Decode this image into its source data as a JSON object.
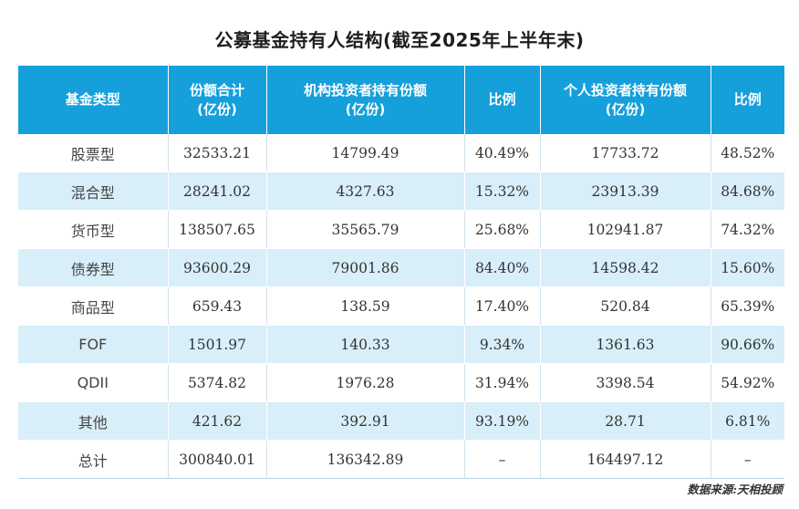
{
  "title": "公募基金持有人结构(截至2025年上半年末)",
  "table": {
    "headers": [
      {
        "line1": "基金类型",
        "line2": ""
      },
      {
        "line1": "份额合计",
        "line2": "(亿份)"
      },
      {
        "line1": "机构投资者持有份额",
        "line2": "(亿份)"
      },
      {
        "line1": "比例",
        "line2": ""
      },
      {
        "line1": "个人投资者持有份额",
        "line2": "(亿份)"
      },
      {
        "line1": "比例",
        "line2": ""
      }
    ],
    "rows": [
      [
        "股票型",
        "32533.21",
        "14799.49",
        "40.49%",
        "17733.72",
        "48.52%"
      ],
      [
        "混合型",
        "28241.02",
        "4327.63",
        "15.32%",
        "23913.39",
        "84.68%"
      ],
      [
        "货币型",
        "138507.65",
        "35565.79",
        "25.68%",
        "102941.87",
        "74.32%"
      ],
      [
        "债券型",
        "93600.29",
        "79001.86",
        "84.40%",
        "14598.42",
        "15.60%"
      ],
      [
        "商品型",
        "659.43",
        "138.59",
        "17.40%",
        "520.84",
        "65.39%"
      ],
      [
        "FOF",
        "1501.97",
        "140.33",
        "9.34%",
        "1361.63",
        "90.66%"
      ],
      [
        "QDII",
        "5374.82",
        "1976.28",
        "31.94%",
        "3398.54",
        "54.92%"
      ],
      [
        "其他",
        "421.62",
        "392.91",
        "93.19%",
        "28.71",
        "6.81%"
      ],
      [
        "总计",
        "300840.01",
        "136342.89",
        "–",
        "164497.12",
        "–"
      ]
    ]
  },
  "source": "数据来源:天相投顾",
  "colors": {
    "header_bg": "#15a0dc",
    "stripe_bg": "#d8eef9",
    "text": "#333333"
  }
}
